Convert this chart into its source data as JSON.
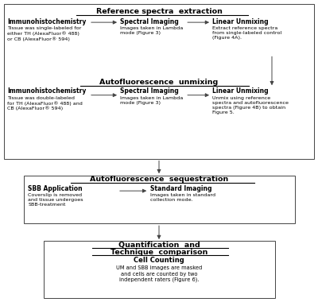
{
  "bg_color": "#ffffff",
  "box_edge_color": "#444444",
  "arrow_color": "#444444",
  "title1": "Reference spectra  extraction",
  "title2": "Autofluorescence  unmixing",
  "title3": "Autofluorescence  sequestration",
  "title4_line1": "Quantification  and",
  "title4_line2": "Technique  comparison",
  "row1_col1_bold": "Immunohistochemistry",
  "row1_col1_body": "Tissue was single-labeled for\neither TH (AlexaFluor® 488)\nor CB (AlexaFluor® 594)",
  "row1_col2_bold": "Spectral Imaging",
  "row1_col2_body": "Images taken in Lambda\nmode (Figure 3)",
  "row1_col3_bold": "Linear Unmixing",
  "row1_col3_body": "Extract reference spectra\nfrom single-labeled control\n(Figure 4A).",
  "row2_col1_bold": "Immunohistochemistry",
  "row2_col1_body": "Tissue was double-labeled\nfor TH (AlexaFluor® 488) and\nCB (AlexaFluor® 594)",
  "row2_col2_bold": "Spectral Imaging",
  "row2_col2_body": "Images taken in Lambda\nmode (Figure 3)",
  "row2_col3_bold": "Linear Unmixing",
  "row2_col3_body": "Unmix using reference\nspectra and autofluorescence\nspectra (Figure 4B) to obtain\nFigure 5.",
  "box3_col1_bold": "SBB Application",
  "box3_col1_body": "Coverslip is removed\nand tissue undergoes\nSBB-treatment",
  "box3_col2_bold": "Standard Imaging",
  "box3_col2_body": "Images taken in standard\ncollection mode.",
  "box4_bold": "Cell Counting",
  "box4_body": "UM and SBB images are masked\nand cells are counted by two\nindependent raters (Figure 6)."
}
